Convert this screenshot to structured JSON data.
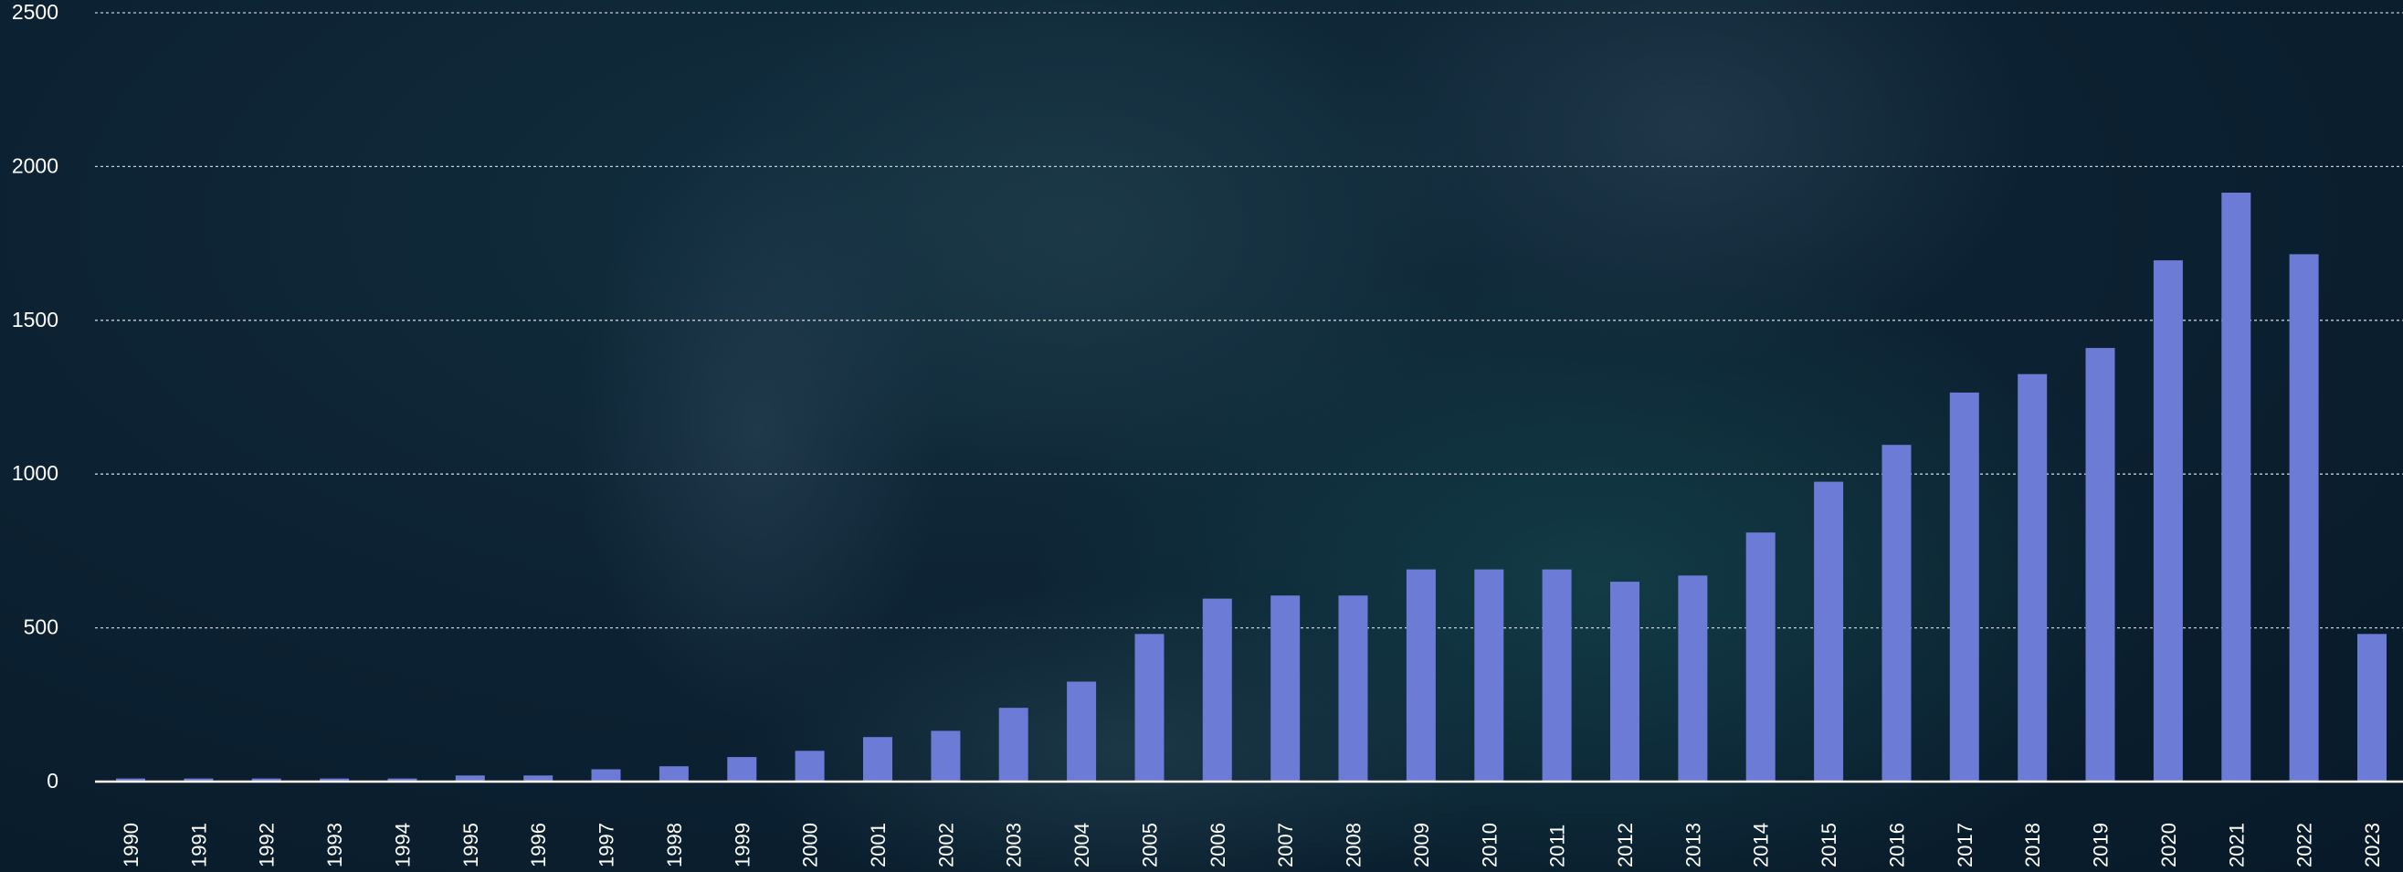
{
  "colors": {
    "background": "#0b2030",
    "bar": "#6b7bd6",
    "grid": "#e6ebf0",
    "text": "#ffffff"
  },
  "chart_data": {
    "type": "bar",
    "title": "",
    "xlabel": "",
    "ylabel": "",
    "ylim": [
      0,
      2500
    ],
    "yticks": [
      0,
      500,
      1000,
      1500,
      2000,
      2500
    ],
    "grid": true,
    "categories": [
      "1990",
      "1991",
      "1992",
      "1993",
      "1994",
      "1995",
      "1996",
      "1997",
      "1998",
      "1999",
      "2000",
      "2001",
      "2002",
      "2003",
      "2004",
      "2005",
      "2006",
      "2007",
      "2008",
      "2009",
      "2010",
      "2011",
      "2012",
      "2013",
      "2014",
      "2015",
      "2016",
      "2017",
      "2018",
      "2019",
      "2020",
      "2021",
      "2022",
      "2023"
    ],
    "values": [
      10,
      10,
      10,
      10,
      10,
      20,
      20,
      40,
      50,
      80,
      100,
      145,
      165,
      240,
      325,
      480,
      595,
      605,
      605,
      690,
      690,
      690,
      650,
      670,
      810,
      975,
      1095,
      1265,
      1325,
      1410,
      1695,
      1915,
      1715,
      480
    ]
  }
}
